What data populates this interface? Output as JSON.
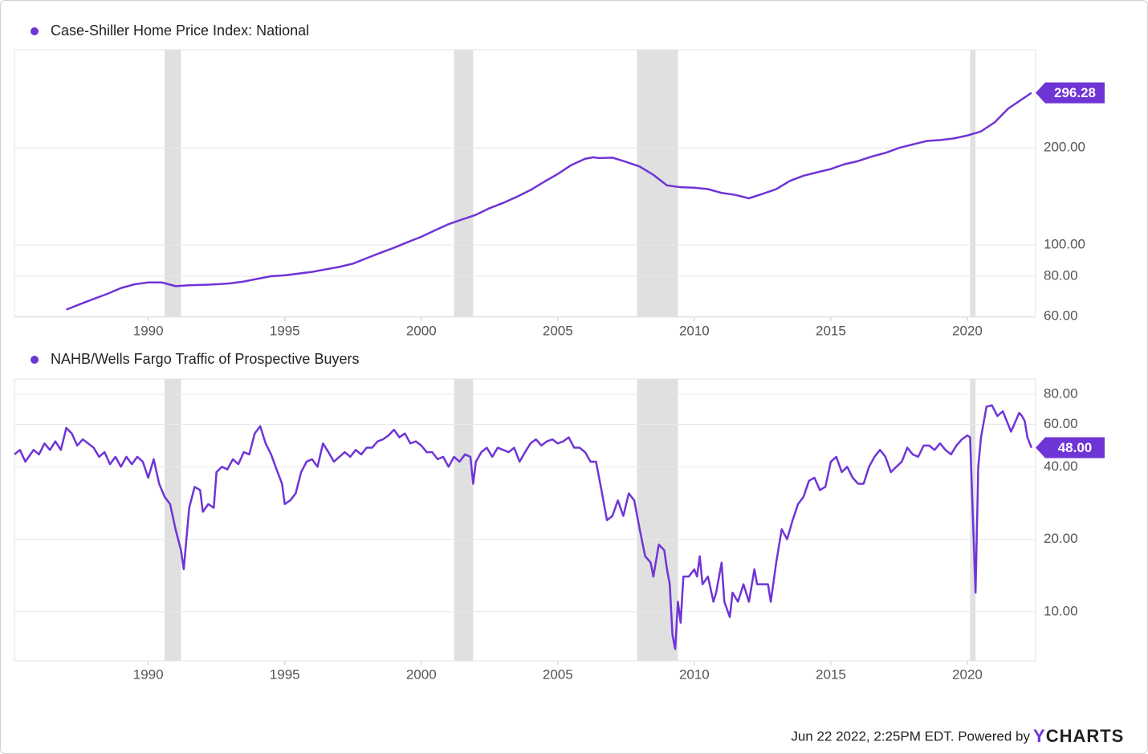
{
  "chart_data": [
    {
      "type": "line",
      "log_scale": true,
      "grid": true,
      "recession_color": "#e0e0e0",
      "recessions": [
        [
          1990.6,
          1991.2
        ],
        [
          2001.2,
          2001.9
        ],
        [
          2007.9,
          2009.4
        ],
        [
          2020.1,
          2020.3
        ]
      ],
      "xlim": [
        1985.1,
        2022.5
      ],
      "xticks": [
        1990,
        1995,
        2000,
        2005,
        2010,
        2015,
        2020
      ],
      "ylim": [
        59.7,
        403
      ],
      "yticks": [
        {
          "value": 60,
          "label": "60.00"
        },
        {
          "value": 80,
          "label": "80.00"
        },
        {
          "value": 100,
          "label": "100.00"
        },
        {
          "value": 200,
          "label": "200.00"
        }
      ],
      "x": [
        1987.0,
        1987.5,
        1988,
        1988.5,
        1989,
        1989.5,
        1990,
        1990.5,
        1991,
        1991.5,
        1992,
        1992.5,
        1993,
        1993.5,
        1994,
        1994.5,
        1995,
        1995.5,
        1996,
        1996.5,
        1997,
        1997.5,
        1998,
        1998.5,
        1999,
        1999.5,
        2000,
        2000.5,
        2001,
        2001.5,
        2002,
        2002.5,
        2003,
        2003.5,
        2004,
        2004.5,
        2005,
        2005.5,
        2006,
        2006.3,
        2006.5,
        2007,
        2007.5,
        2008,
        2008.5,
        2009,
        2009.5,
        2010,
        2010.5,
        2011,
        2011.5,
        2012,
        2012.5,
        2013,
        2013.5,
        2014,
        2014.5,
        2015,
        2015.5,
        2016,
        2016.5,
        2017,
        2017.5,
        2018,
        2018.5,
        2019,
        2019.5,
        2020,
        2020.5,
        2021,
        2021.5,
        2022.35
      ],
      "series": [
        {
          "name": "Case-Shiller Home Price Index: National",
          "color": "#6f34d6",
          "values": [
            63,
            65.5,
            68,
            70.5,
            73.5,
            75.5,
            76.5,
            76.5,
            74.5,
            75,
            75.2,
            75.5,
            76,
            77,
            78.5,
            80,
            80.5,
            81.5,
            82.5,
            84,
            85.5,
            87.5,
            91,
            94.5,
            98,
            102,
            106,
            111,
            116,
            120,
            124,
            130,
            135,
            141,
            148,
            157,
            166,
            177,
            185,
            187,
            186,
            186.5,
            181,
            175,
            165,
            153,
            151,
            150.5,
            149,
            145,
            143,
            139.5,
            144,
            149,
            158,
            164,
            168,
            172,
            178,
            182,
            188,
            193,
            200,
            205,
            210,
            211.5,
            214,
            218.5,
            225,
            240,
            265,
            296.28
          ]
        }
      ]
    },
    {
      "type": "line",
      "log_scale": true,
      "grid": true,
      "recession_color": "#e0e0e0",
      "recessions": [
        [
          1990.6,
          1991.2
        ],
        [
          2001.2,
          2001.9
        ],
        [
          2007.9,
          2009.4
        ],
        [
          2020.1,
          2020.3
        ]
      ],
      "xlim": [
        1985.1,
        2022.5
      ],
      "xticks": [
        1990,
        1995,
        2000,
        2005,
        2010,
        2015,
        2020
      ],
      "ylim": [
        6.25,
        92.6
      ],
      "yticks": [
        {
          "value": 10,
          "label": "10.00"
        },
        {
          "value": 20,
          "label": "20.00"
        },
        {
          "value": 40,
          "label": "40.00"
        },
        {
          "value": 60,
          "label": "60.00"
        },
        {
          "value": 80,
          "label": "80.00"
        }
      ],
      "x": [
        1985.1,
        1985.3,
        1985.5,
        1985.8,
        1986.0,
        1986.2,
        1986.4,
        1986.6,
        1986.8,
        1987.0,
        1987.2,
        1987.4,
        1987.6,
        1987.8,
        1988.0,
        1988.2,
        1988.4,
        1988.6,
        1988.8,
        1989.0,
        1989.2,
        1989.4,
        1989.6,
        1989.8,
        1990.0,
        1990.2,
        1990.4,
        1990.6,
        1990.8,
        1991.0,
        1991.2,
        1991.3,
        1991.5,
        1991.7,
        1991.9,
        1992.0,
        1992.2,
        1992.4,
        1992.5,
        1992.7,
        1992.9,
        1993.1,
        1993.3,
        1993.5,
        1993.7,
        1993.9,
        1994.1,
        1994.3,
        1994.5,
        1994.7,
        1994.9,
        1995.0,
        1995.2,
        1995.4,
        1995.6,
        1995.8,
        1996.0,
        1996.2,
        1996.4,
        1996.6,
        1996.8,
        1997.0,
        1997.2,
        1997.4,
        1997.6,
        1997.8,
        1998.0,
        1998.2,
        1998.4,
        1998.6,
        1998.8,
        1999.0,
        1999.2,
        1999.4,
        1999.6,
        1999.8,
        2000.0,
        2000.2,
        2000.4,
        2000.6,
        2000.8,
        2001.0,
        2001.2,
        2001.4,
        2001.6,
        2001.8,
        2001.9,
        2002.0,
        2002.2,
        2002.4,
        2002.6,
        2002.8,
        2003.0,
        2003.2,
        2003.4,
        2003.6,
        2003.8,
        2004.0,
        2004.2,
        2004.4,
        2004.6,
        2004.8,
        2005.0,
        2005.2,
        2005.4,
        2005.6,
        2005.8,
        2006.0,
        2006.2,
        2006.4,
        2006.6,
        2006.8,
        2007.0,
        2007.2,
        2007.4,
        2007.6,
        2007.8,
        2008.0,
        2008.2,
        2008.4,
        2008.5,
        2008.7,
        2008.9,
        2009.0,
        2009.1,
        2009.2,
        2009.3,
        2009.4,
        2009.5,
        2009.6,
        2009.8,
        2010.0,
        2010.1,
        2010.2,
        2010.3,
        2010.5,
        2010.7,
        2010.8,
        2011.0,
        2011.1,
        2011.3,
        2011.4,
        2011.6,
        2011.8,
        2012.0,
        2012.2,
        2012.3,
        2012.5,
        2012.7,
        2012.8,
        2013.0,
        2013.2,
        2013.4,
        2013.6,
        2013.8,
        2014.0,
        2014.2,
        2014.4,
        2014.6,
        2014.8,
        2015.0,
        2015.2,
        2015.4,
        2015.6,
        2015.8,
        2016.0,
        2016.2,
        2016.4,
        2016.6,
        2016.8,
        2017.0,
        2017.2,
        2017.4,
        2017.6,
        2017.8,
        2018.0,
        2018.2,
        2018.4,
        2018.6,
        2018.8,
        2019.0,
        2019.2,
        2019.4,
        2019.6,
        2019.8,
        2020.0,
        2020.1,
        2020.3,
        2020.4,
        2020.5,
        2020.7,
        2020.9,
        2021.1,
        2021.3,
        2021.6,
        2021.9,
        2022.0,
        2022.1,
        2022.2,
        2022.35
      ],
      "series": [
        {
          "name": "NAHB/Wells Fargo Traffic of Prospective Buyers",
          "color": "#6f34d6",
          "values": [
            45,
            47,
            42,
            47,
            45,
            50,
            47,
            51,
            47,
            58,
            55,
            49,
            52,
            50,
            48,
            44,
            46,
            41,
            44,
            40,
            44,
            41,
            44,
            42,
            36,
            43,
            34,
            30,
            28,
            22,
            18,
            15,
            27,
            33,
            32,
            26,
            28,
            27,
            38,
            40,
            39,
            43,
            41,
            46,
            45,
            55,
            59,
            50,
            45,
            39,
            34,
            28,
            29,
            31,
            38,
            42,
            43,
            40,
            50,
            46,
            42,
            44,
            46,
            44,
            47,
            45,
            48,
            48,
            51,
            52,
            54,
            57,
            53,
            55,
            50,
            51,
            49,
            46,
            46,
            43,
            44,
            40,
            44,
            42,
            45,
            44,
            34,
            42,
            46,
            48,
            44,
            48,
            47,
            46,
            48,
            42,
            46,
            50,
            52,
            49,
            51,
            52,
            50,
            51,
            53,
            48,
            48,
            46,
            42,
            42,
            32,
            24,
            25,
            29,
            25,
            31,
            29,
            22,
            17,
            16,
            14,
            19,
            18,
            15,
            13,
            8,
            7,
            11,
            9,
            14,
            14,
            15,
            14,
            17,
            13,
            14,
            11,
            12,
            16,
            11,
            9.5,
            12,
            11,
            13,
            11,
            15,
            13,
            13,
            13,
            11,
            16,
            22,
            20,
            24,
            28,
            30,
            35,
            36,
            32,
            33,
            42,
            44,
            38,
            40,
            36,
            34,
            34,
            40,
            44,
            47,
            44,
            38,
            40,
            42,
            48,
            45,
            44,
            49,
            49,
            47,
            50,
            47,
            45,
            49,
            52,
            54,
            53,
            12,
            40,
            53,
            71,
            72,
            65,
            68,
            56,
            67,
            65,
            62,
            53,
            48
          ],
          "value_labels": [
            null,
            null,
            null,
            null,
            null,
            null,
            null,
            null,
            null,
            null,
            null,
            null,
            null,
            null,
            null,
            null,
            null,
            null,
            null,
            null,
            null,
            null,
            null,
            null,
            null,
            null,
            null,
            null,
            null,
            null,
            null,
            null,
            null,
            null,
            null,
            null,
            null,
            null,
            null,
            null,
            null,
            null,
            null,
            null,
            null,
            null,
            null,
            null,
            null,
            null,
            null,
            null,
            null,
            null,
            null,
            null,
            null,
            null,
            null,
            null,
            null,
            null,
            null,
            null,
            null,
            null,
            null,
            null,
            null,
            null,
            null,
            null,
            null,
            null,
            null,
            null,
            null,
            null,
            null,
            null,
            null,
            null,
            null,
            null,
            null,
            null,
            null,
            null,
            null,
            null,
            null,
            null,
            null,
            null,
            null,
            null,
            null,
            null,
            null,
            null,
            null,
            null,
            null,
            null,
            null,
            null,
            null,
            null,
            null,
            null,
            null,
            null,
            null,
            null,
            null,
            null,
            null,
            null,
            null,
            null,
            null,
            null,
            null,
            null,
            null,
            null,
            null,
            null,
            null,
            null,
            null,
            null,
            null,
            null,
            null,
            null,
            null,
            null,
            null,
            null,
            null,
            null,
            null,
            null,
            null,
            null,
            null,
            null,
            null,
            null,
            null,
            null,
            null,
            null,
            null,
            null,
            null,
            null,
            null,
            null,
            null,
            null,
            null,
            null,
            null,
            null,
            null,
            null,
            null,
            null,
            null,
            null,
            null,
            null,
            null,
            null,
            null,
            null,
            null,
            null,
            null,
            null,
            null,
            null,
            null,
            null,
            null,
            null,
            null,
            null,
            null,
            null,
            null,
            null,
            null,
            null,
            null,
            null,
            null,
            "48.00"
          ]
        }
      ]
    }
  ],
  "footer": {
    "timestamp": "Jun 22 2022, 2:25PM EDT. Powered by",
    "brand": "YCHARTS"
  }
}
